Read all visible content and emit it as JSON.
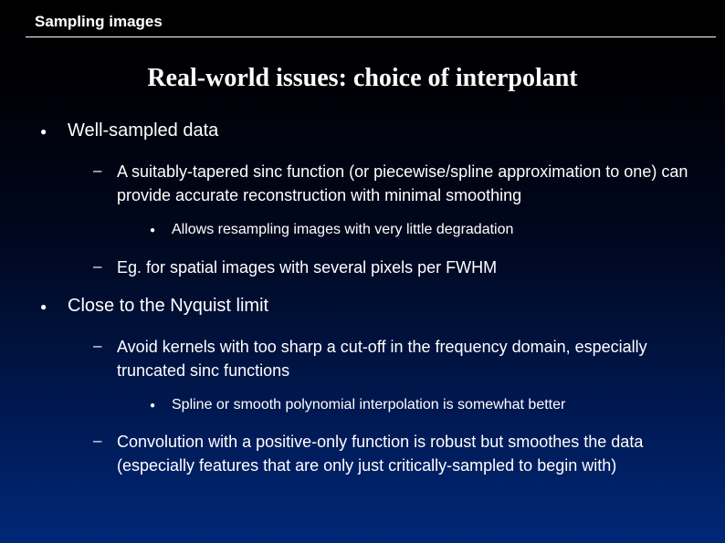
{
  "header": {
    "label": "Sampling images"
  },
  "title": "Real-world issues: choice of interpolant",
  "bullets": {
    "b1": {
      "text": "Well-sampled data",
      "sub": {
        "s1": {
          "text": "A suitably-tapered sinc function (or piecewise/spline approximation to one) can provide accurate reconstruction with minimal smoothing",
          "sub": {
            "t1": "Allows resampling images with very little degradation"
          }
        },
        "s2": {
          "text": "Eg. for spatial images with several pixels per FWHM"
        }
      }
    },
    "b2": {
      "text": "Close to the Nyquist limit",
      "sub": {
        "s1": {
          "text": "Avoid kernels with too sharp a cut-off in the frequency domain, especially truncated sinc functions",
          "sub": {
            "t1": "Spline or smooth polynomial interpolation is somewhat better"
          }
        },
        "s2": {
          "text": "Convolution with a positive-only function is robust but smoothes the data (especially features that are only just critically-sampled to begin with)"
        }
      }
    }
  }
}
